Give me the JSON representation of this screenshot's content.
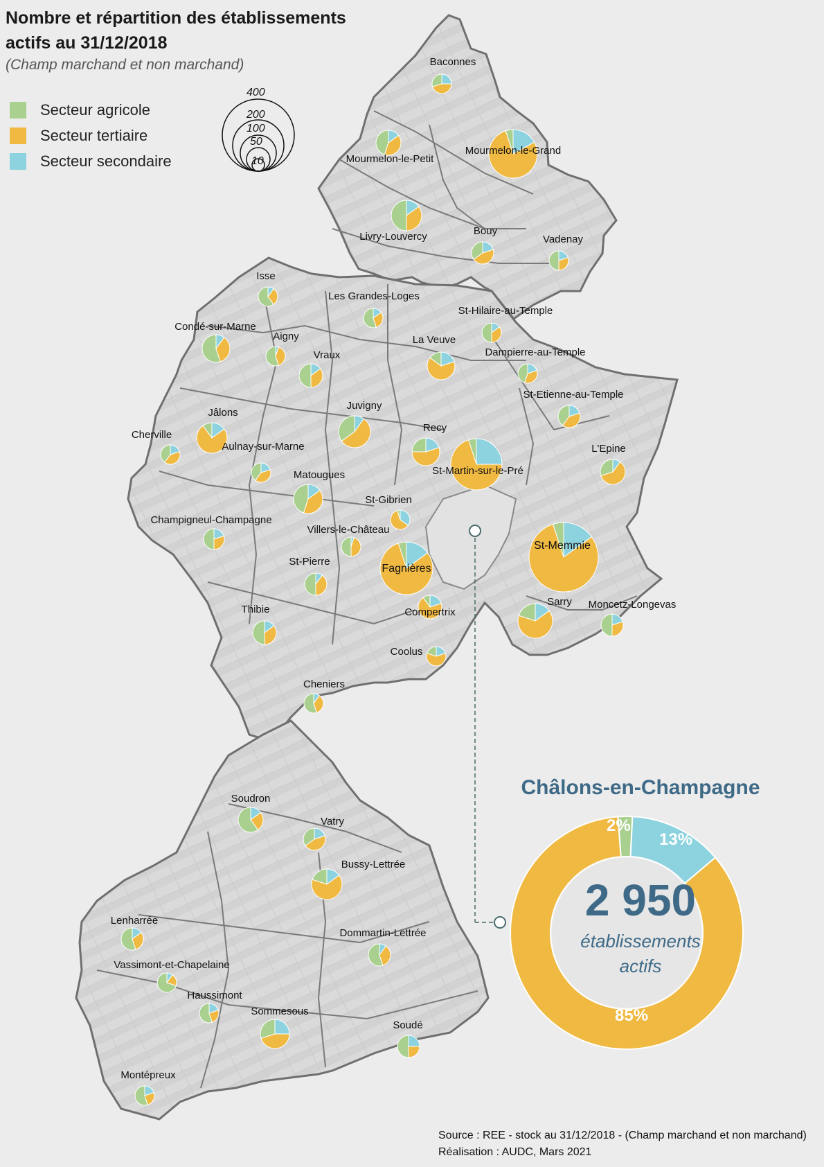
{
  "title": "Nombre et répartition des établissements actifs au 31/12/2018",
  "subtitle": "(Champ marchand et non marchand)",
  "legend": [
    {
      "label": "Secteur agricole",
      "color": "#a9d08e"
    },
    {
      "label": "Secteur tertiaire",
      "color": "#f0b942"
    },
    {
      "label": "Secteur secondaire",
      "color": "#8dd3df"
    }
  ],
  "size_legend": {
    "values": [
      "400",
      "200",
      "100",
      "50",
      "10"
    ]
  },
  "colors": {
    "agricole": "#a9d08e",
    "tertiaire": "#f0b942",
    "secondaire": "#8dd3df",
    "boundary": "#707070",
    "accent": "#3e6a87"
  },
  "communes": [
    {
      "name": "Baconnes",
      "agri": 0.3,
      "tert": 0.45,
      "sec": 0.25
    },
    {
      "name": "Mourmelon-le-Grand",
      "agri": 0.05,
      "tert": 0.78,
      "sec": 0.17
    },
    {
      "name": "Mourmelon-le-Petit",
      "agri": 0.45,
      "tert": 0.4,
      "sec": 0.15
    },
    {
      "name": "Livry-Louvercy",
      "agri": 0.5,
      "tert": 0.35,
      "sec": 0.15
    },
    {
      "name": "Bouy",
      "agri": 0.35,
      "tert": 0.45,
      "sec": 0.2
    },
    {
      "name": "Vadenay",
      "agri": 0.5,
      "tert": 0.3,
      "sec": 0.2
    },
    {
      "name": "Isse",
      "agri": 0.6,
      "tert": 0.3,
      "sec": 0.1
    },
    {
      "name": "Les Grandes-Loges",
      "agri": 0.55,
      "tert": 0.3,
      "sec": 0.15
    },
    {
      "name": "St-Hilaire-au-Temple",
      "agri": 0.5,
      "tert": 0.35,
      "sec": 0.15
    },
    {
      "name": "Condé-sur-Marne",
      "agri": 0.55,
      "tert": 0.35,
      "sec": 0.1
    },
    {
      "name": "Aigny",
      "agri": 0.55,
      "tert": 0.4,
      "sec": 0.05
    },
    {
      "name": "Vraux",
      "agri": 0.5,
      "tert": 0.35,
      "sec": 0.15
    },
    {
      "name": "La Veuve",
      "agri": 0.15,
      "tert": 0.65,
      "sec": 0.2
    },
    {
      "name": "Dampierre-au-Temple",
      "agri": 0.45,
      "tert": 0.35,
      "sec": 0.2
    },
    {
      "name": "Juvigny",
      "agri": 0.35,
      "tert": 0.55,
      "sec": 0.1
    },
    {
      "name": "St-Etienne-au-Temple",
      "agri": 0.4,
      "tert": 0.4,
      "sec": 0.2
    },
    {
      "name": "Jâlons",
      "agri": 0.1,
      "tert": 0.75,
      "sec": 0.15
    },
    {
      "name": "Cherville",
      "agri": 0.4,
      "tert": 0.4,
      "sec": 0.2
    },
    {
      "name": "Aulnay-sur-Marne",
      "agri": 0.4,
      "tert": 0.4,
      "sec": 0.2
    },
    {
      "name": "Recy",
      "agri": 0.25,
      "tert": 0.55,
      "sec": 0.2
    },
    {
      "name": "St-Martin-sur-le-Pré",
      "agri": 0.05,
      "tert": 0.7,
      "sec": 0.25
    },
    {
      "name": "L'Epine",
      "agri": 0.3,
      "tert": 0.6,
      "sec": 0.1
    },
    {
      "name": "Matougues",
      "agri": 0.45,
      "tert": 0.4,
      "sec": 0.15
    },
    {
      "name": "St-Gibrien",
      "agri": 0.05,
      "tert": 0.6,
      "sec": 0.35
    },
    {
      "name": "Champigneul-Champagne",
      "agri": 0.5,
      "tert": 0.3,
      "sec": 0.2
    },
    {
      "name": "Villers-le-Château",
      "agri": 0.5,
      "tert": 0.45,
      "sec": 0.05
    },
    {
      "name": "St-Memmie",
      "agri": 0.05,
      "tert": 0.8,
      "sec": 0.15
    },
    {
      "name": "Fagnières",
      "agri": 0.05,
      "tert": 0.8,
      "sec": 0.15
    },
    {
      "name": "St-Pierre",
      "agri": 0.5,
      "tert": 0.4,
      "sec": 0.1
    },
    {
      "name": "Compertrix",
      "agri": 0.1,
      "tert": 0.7,
      "sec": 0.2
    },
    {
      "name": "Sarry",
      "agri": 0.2,
      "tert": 0.65,
      "sec": 0.15
    },
    {
      "name": "Moncetz-Longevas",
      "agri": 0.5,
      "tert": 0.3,
      "sec": 0.2
    },
    {
      "name": "Thibie",
      "agri": 0.5,
      "tert": 0.35,
      "sec": 0.15
    },
    {
      "name": "Coolus",
      "agri": 0.2,
      "tert": 0.6,
      "sec": 0.2
    },
    {
      "name": "Cheniers",
      "agri": 0.55,
      "tert": 0.35,
      "sec": 0.1
    },
    {
      "name": "Soudron",
      "agri": 0.6,
      "tert": 0.25,
      "sec": 0.15
    },
    {
      "name": "Vatry",
      "agri": 0.35,
      "tert": 0.45,
      "sec": 0.2
    },
    {
      "name": "Bussy-Lettrée",
      "agri": 0.2,
      "tert": 0.65,
      "sec": 0.15
    },
    {
      "name": "Lenharrée",
      "agri": 0.55,
      "tert": 0.3,
      "sec": 0.15
    },
    {
      "name": "Dommartin-Lettrée",
      "agri": 0.55,
      "tert": 0.35,
      "sec": 0.1
    },
    {
      "name": "Vassimont-et-Chapelaine",
      "agri": 0.7,
      "tert": 0.2,
      "sec": 0.1
    },
    {
      "name": "Haussimont",
      "agri": 0.55,
      "tert": 0.25,
      "sec": 0.2
    },
    {
      "name": "Sommesous",
      "agri": 0.3,
      "tert": 0.45,
      "sec": 0.25
    },
    {
      "name": "Soudé",
      "agri": 0.5,
      "tert": 0.25,
      "sec": 0.25
    },
    {
      "name": "Montépreux",
      "agri": 0.55,
      "tert": 0.25,
      "sec": 0.2
    }
  ],
  "chalons": {
    "name": "Châlons-en-Champagne",
    "total": "2 950",
    "caption_line1": "établissements",
    "caption_line2": "actifs",
    "pct_agricole": "2%",
    "pct_secondaire": "13%",
    "pct_tertiaire": "85%",
    "share_agricole": 0.02,
    "share_secondaire": 0.13,
    "share_tertiaire": 0.85
  },
  "source": "Source : REE - stock au 31/12/2018 - (Champ marchand et non marchand)",
  "realisation": "Réalisation : AUDC, Mars 2021"
}
